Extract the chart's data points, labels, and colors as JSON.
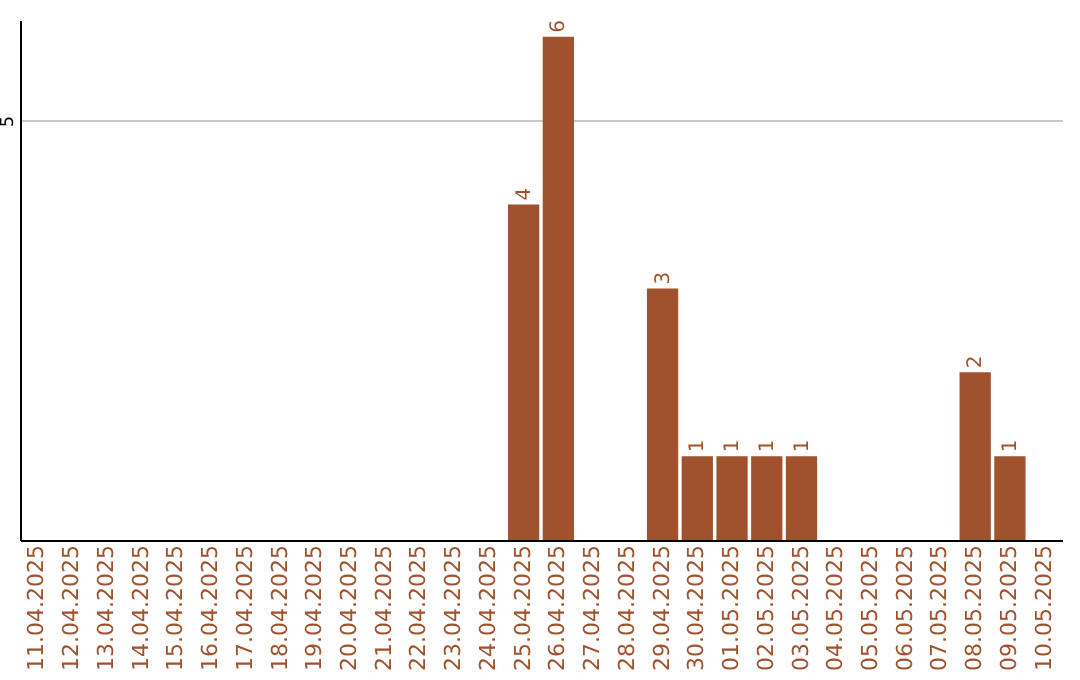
{
  "chart_data": {
    "type": "bar",
    "categories": [
      "11.04.2025",
      "12.04.2025",
      "13.04.2025",
      "14.04.2025",
      "15.04.2025",
      "16.04.2025",
      "17.04.2025",
      "18.04.2025",
      "19.04.2025",
      "20.04.2025",
      "21.04.2025",
      "22.04.2025",
      "23.04.2025",
      "24.04.2025",
      "25.04.2025",
      "26.04.2025",
      "27.04.2025",
      "28.04.2025",
      "29.04.2025",
      "30.04.2025",
      "01.05.2025",
      "02.05.2025",
      "03.05.2025",
      "04.05.2025",
      "05.05.2025",
      "06.05.2025",
      "07.05.2025",
      "08.05.2025",
      "09.05.2025",
      "10.05.2025"
    ],
    "values": [
      null,
      null,
      null,
      null,
      null,
      null,
      null,
      null,
      null,
      null,
      null,
      null,
      null,
      null,
      4,
      6,
      null,
      null,
      3,
      1,
      1,
      1,
      1,
      null,
      null,
      null,
      null,
      2,
      1,
      null
    ],
    "color": "#a0522d",
    "ylim": [
      0,
      6.2
    ],
    "yticks": [
      5
    ],
    "grid": "y",
    "data_labels": true
  }
}
